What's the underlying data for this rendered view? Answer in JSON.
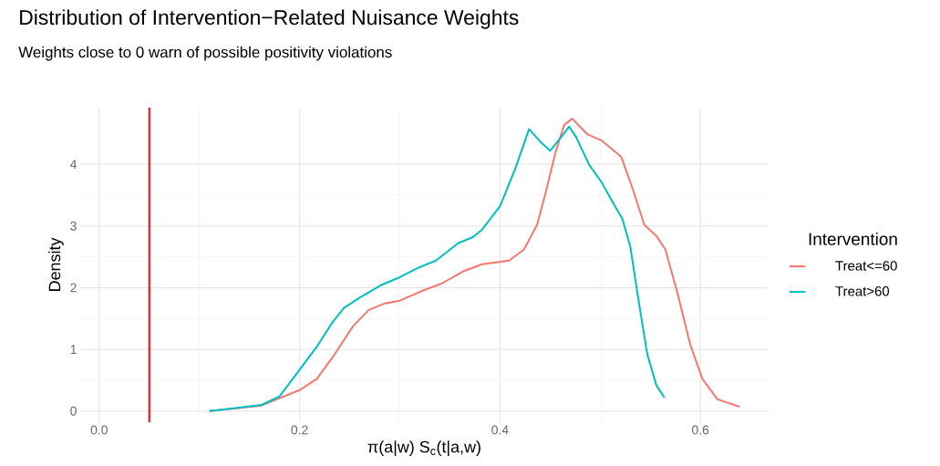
{
  "chart_data": {
    "type": "line",
    "title": "Distribution of Intervention−Related Nuisance Weights",
    "subtitle": "Weights close to 0 warn of possible positivity violations",
    "xlabel": "π(a|w) S$_{c}$(t|a,w)",
    "ylabel": "Density",
    "legend_title": "Intervention",
    "series": [
      {
        "name": "Treat<=60",
        "color": "#f8766d",
        "x": [
          0.11,
          0.162,
          0.2,
          0.217,
          0.235,
          0.253,
          0.269,
          0.284,
          0.3,
          0.321,
          0.342,
          0.364,
          0.382,
          0.409,
          0.424,
          0.437,
          0.446,
          0.455,
          0.464,
          0.472,
          0.487,
          0.501,
          0.521,
          0.531,
          0.544,
          0.556,
          0.565,
          0.577,
          0.59,
          0.602,
          0.617,
          0.639
        ],
        "values": [
          0,
          0.09,
          0.34,
          0.52,
          0.92,
          1.37,
          1.64,
          1.74,
          1.79,
          1.94,
          2.07,
          2.27,
          2.38,
          2.44,
          2.62,
          3.02,
          3.57,
          4.17,
          4.64,
          4.74,
          4.49,
          4.39,
          4.12,
          3.67,
          3.02,
          2.84,
          2.62,
          1.92,
          1.07,
          0.52,
          0.19,
          0.07
        ]
      },
      {
        "name": "Treat>60",
        "color": "#00bfc4",
        "x": [
          0.11,
          0.162,
          0.18,
          0.2,
          0.217,
          0.232,
          0.244,
          0.26,
          0.281,
          0.3,
          0.318,
          0.336,
          0.348,
          0.358,
          0.373,
          0.382,
          0.4,
          0.415,
          0.429,
          0.44,
          0.45,
          0.461,
          0.469,
          0.476,
          0.489,
          0.501,
          0.513,
          0.522,
          0.53,
          0.538,
          0.547,
          0.556,
          0.564
        ],
        "values": [
          0,
          0.1,
          0.24,
          0.67,
          1.04,
          1.42,
          1.67,
          1.84,
          2.04,
          2.17,
          2.32,
          2.44,
          2.59,
          2.72,
          2.82,
          2.94,
          3.32,
          3.92,
          4.57,
          4.37,
          4.22,
          4.44,
          4.61,
          4.44,
          3.99,
          3.72,
          3.37,
          3.12,
          2.67,
          1.82,
          0.92,
          0.42,
          0.22
        ]
      }
    ],
    "xlim": [
      -0.019,
      0.668
    ],
    "ylim": [
      -0.18,
      4.92
    ],
    "xticks": [
      {
        "value": 0,
        "label": "0.0"
      },
      {
        "value": 0.2,
        "label": "0.2"
      },
      {
        "value": 0.4,
        "label": "0.4"
      },
      {
        "value": 0.6,
        "label": "0.6"
      }
    ],
    "yticks": [
      0,
      1,
      2,
      3,
      4
    ],
    "ref_lines": [
      {
        "axis": "x",
        "value": 0.05,
        "color": "#ff0000"
      }
    ],
    "grid": true,
    "legend": "right",
    "marker": "none",
    "line_style": "solid"
  }
}
